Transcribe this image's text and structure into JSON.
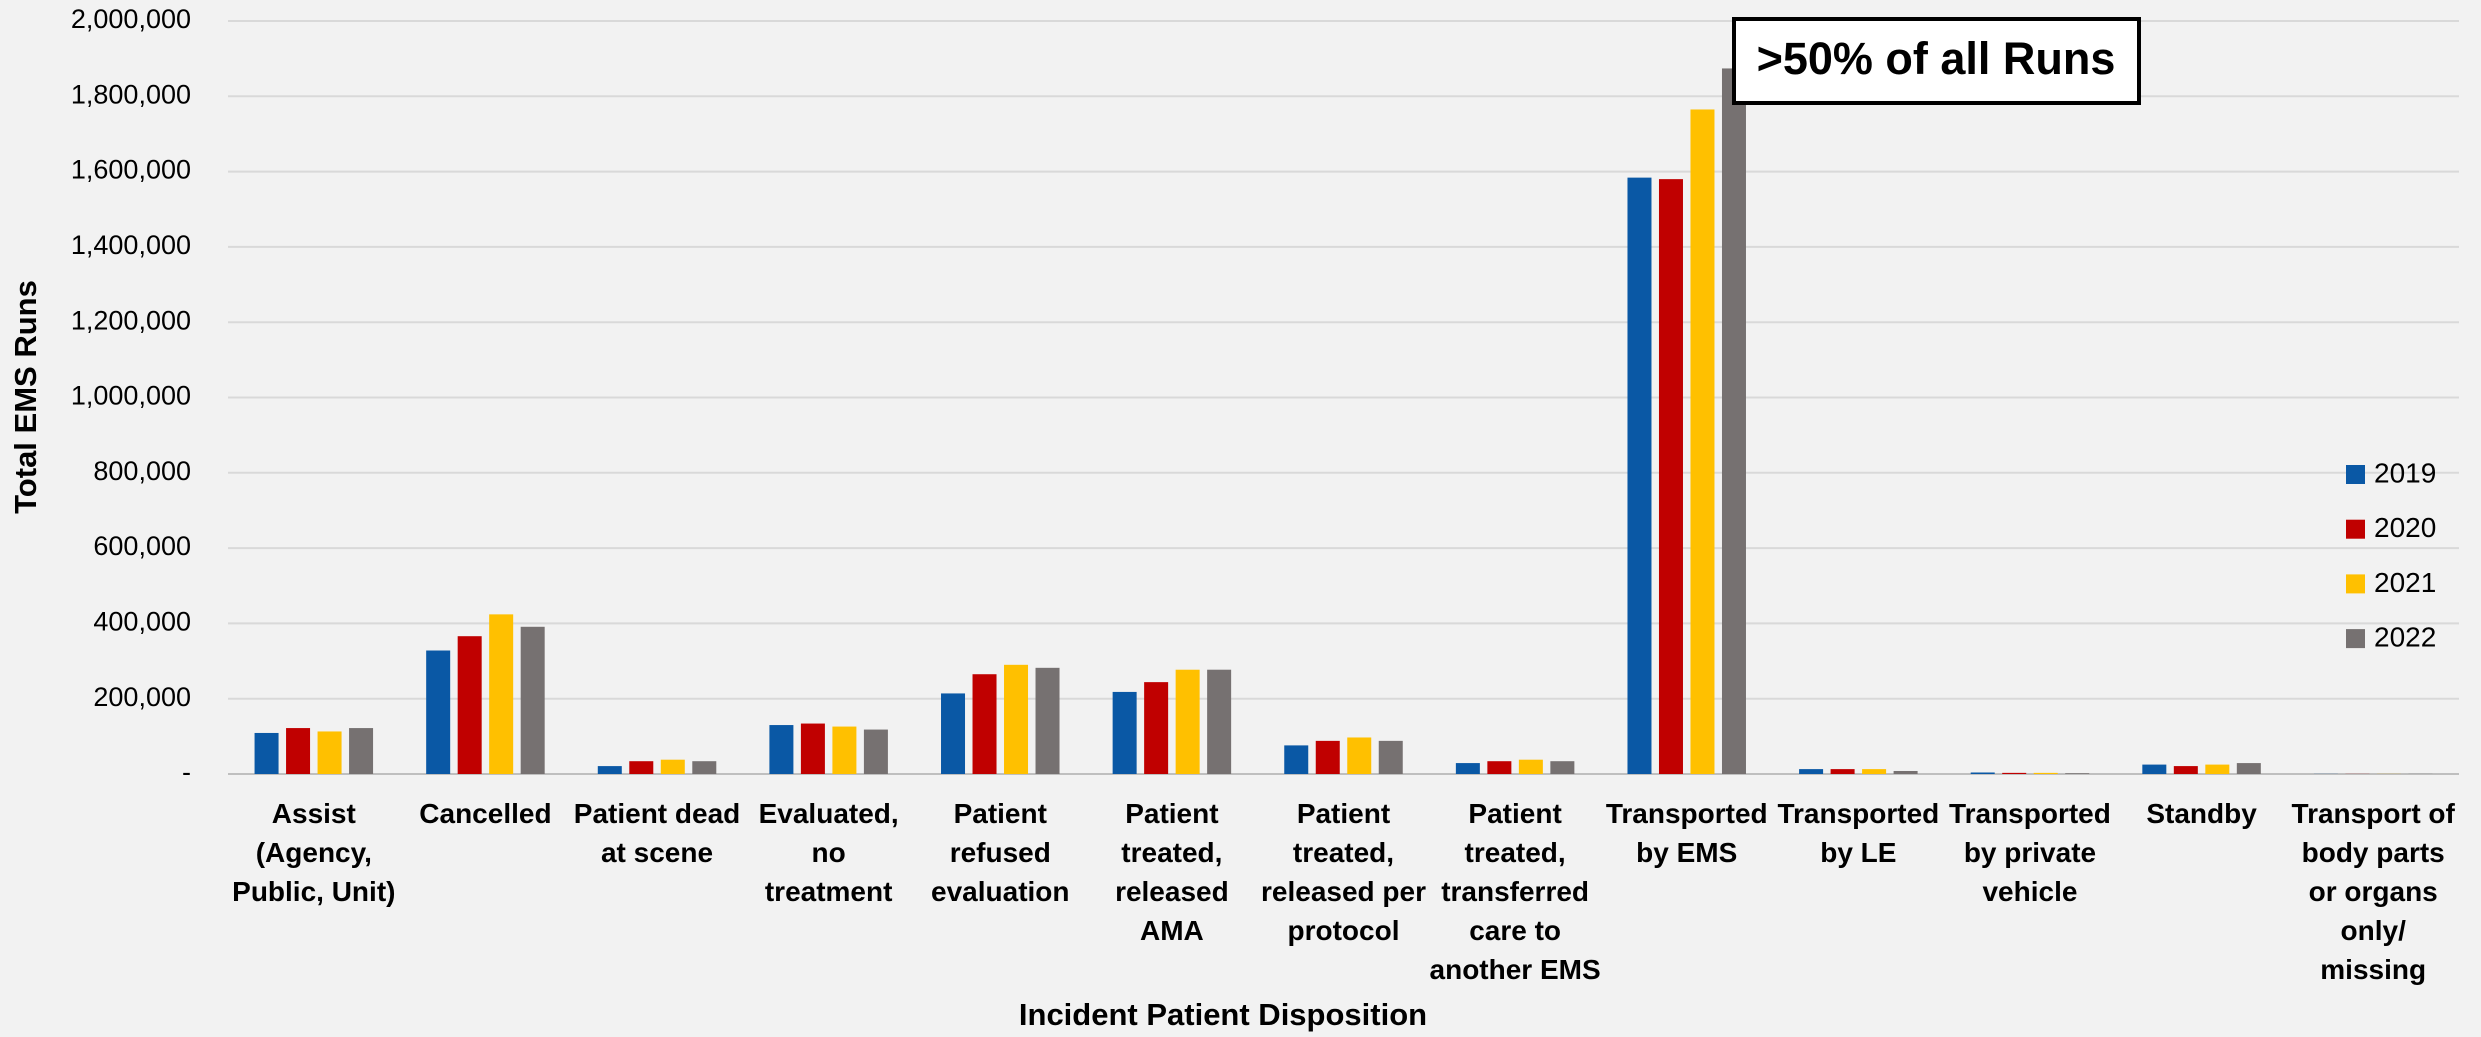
{
  "chart_data": {
    "type": "bar",
    "x_label": "Incident Patient Disposition",
    "y_label": "Total EMS Runs",
    "annotation": ">50% of all Runs",
    "categories": [
      "Assist\n(Agency,\nPublic, Unit)",
      "Cancelled",
      "Patient dead\nat scene",
      "Evaluated,\nno\ntreatment",
      "Patient\nrefused\nevaluation",
      "Patient\ntreated,\nreleased\nAMA",
      "Patient\ntreated,\nreleased per\nprotocol",
      "Patient\ntreated,\ntransferred\ncare to\nanother EMS",
      "Transported\nby EMS",
      "Transported\nby LE",
      "Transported\nby private\nvehicle",
      "Standby",
      "Transport of\nbody parts\nor organs\nonly/\nmissing"
    ],
    "series": [
      {
        "name": "2019",
        "color": "#0a58a5",
        "values": [
          109000,
          328000,
          21000,
          130000,
          214000,
          218000,
          76000,
          29000,
          1584000,
          13000,
          4000,
          25000,
          300
        ]
      },
      {
        "name": "2020",
        "color": "#c00000",
        "values": [
          122000,
          366000,
          34000,
          134000,
          265000,
          244000,
          88000,
          34000,
          1580000,
          13000,
          3000,
          21000,
          300
        ]
      },
      {
        "name": "2021",
        "color": "#ffc000",
        "values": [
          113000,
          424000,
          38000,
          126000,
          290000,
          277000,
          97000,
          38000,
          1765000,
          13000,
          3000,
          25000,
          300
        ]
      },
      {
        "name": "2022",
        "color": "#767171",
        "values": [
          122000,
          391000,
          34000,
          118000,
          282000,
          277000,
          88000,
          34000,
          1874000,
          8000,
          2000,
          29000,
          300
        ]
      }
    ],
    "ylim": [
      0,
      2000000
    ],
    "yticks": [
      {
        "value": 0,
        "label": "-"
      },
      {
        "value": 200000,
        "label": "200,000"
      },
      {
        "value": 400000,
        "label": "400,000"
      },
      {
        "value": 600000,
        "label": "600,000"
      },
      {
        "value": 800000,
        "label": "800,000"
      },
      {
        "value": 1000000,
        "label": "1,000,000"
      },
      {
        "value": 1200000,
        "label": "1,200,000"
      },
      {
        "value": 1400000,
        "label": "1,400,000"
      },
      {
        "value": 1600000,
        "label": "1,600,000"
      },
      {
        "value": 1800000,
        "label": "1,800,000"
      },
      {
        "value": 2000000,
        "label": "2,000,000"
      }
    ],
    "grid": true,
    "legend": "right"
  }
}
